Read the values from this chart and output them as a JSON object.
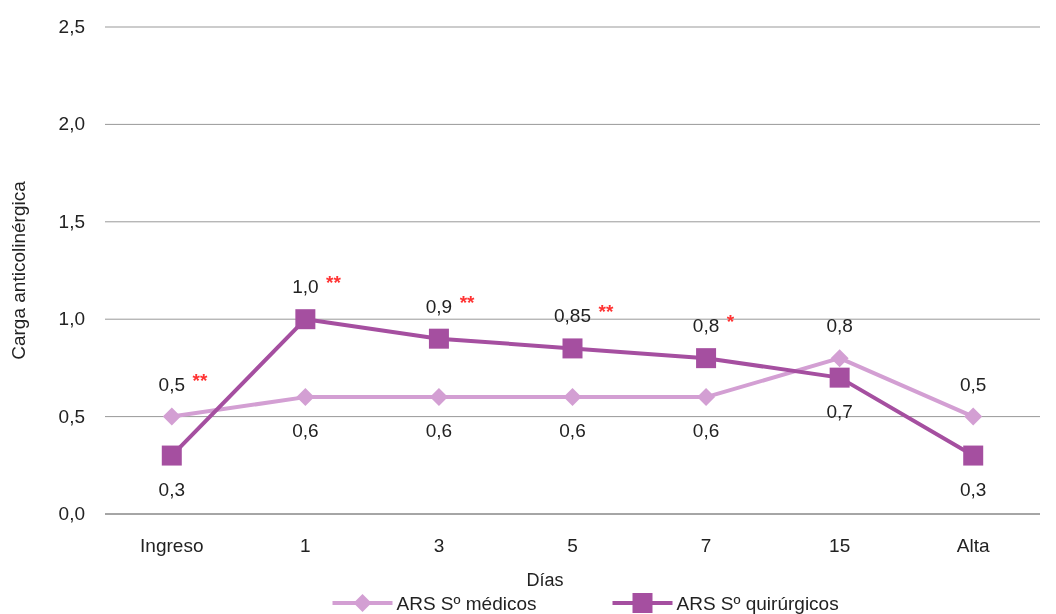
{
  "chart_data": {
    "type": "line",
    "xlabel": "Días",
    "ylabel": "Carga anticolinérgica",
    "categories": [
      "Ingreso",
      "1",
      "3",
      "5",
      "7",
      "15",
      "Alta"
    ],
    "series": [
      {
        "name": "ARS  Sº médicos",
        "color": "#d39fd3",
        "marker": "diamond",
        "values": [
          0.5,
          0.6,
          0.6,
          0.6,
          0.6,
          0.8,
          0.5
        ],
        "value_labels": [
          "0,5",
          "0,6",
          "0,6",
          "0,6",
          "0,6",
          "0,8",
          "0,5"
        ]
      },
      {
        "name": "ARS  Sº quirúrgicos",
        "color": "#a54fa0",
        "marker": "square",
        "values": [
          0.3,
          1.0,
          0.9,
          0.85,
          0.8,
          0.7,
          0.3
        ],
        "value_labels": [
          "0,3",
          "1,0",
          "0,9",
          "0,85",
          "0,8",
          "0,7",
          "0,3"
        ]
      }
    ],
    "annotations": [
      {
        "text": "**",
        "x": "Ingreso",
        "y": 0.5
      },
      {
        "text": "**",
        "x": "1",
        "y": 1.0
      },
      {
        "text": "**",
        "x": "3",
        "y": 0.9
      },
      {
        "text": "**",
        "x": "5",
        "y": 0.85
      },
      {
        "text": "*",
        "x": "7",
        "y": 0.8
      }
    ],
    "ylim": [
      0,
      2.5
    ],
    "yticks": [
      {
        "value": 0,
        "label": "0,0"
      },
      {
        "value": 0.5,
        "label": "0,5"
      },
      {
        "value": 1,
        "label": "1,0"
      },
      {
        "value": 1.5,
        "label": "1,5"
      },
      {
        "value": 2,
        "label": "2,0"
      },
      {
        "value": 2.5,
        "label": "2,5"
      }
    ],
    "grid": "y",
    "legend": "bottom",
    "line_style": "solid"
  }
}
